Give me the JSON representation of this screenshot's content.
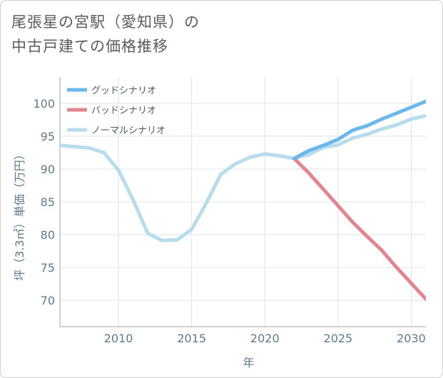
{
  "title_lines": [
    "尾張星の宮駅（愛知県）の",
    "中古戸建ての価格推移"
  ],
  "chart_data": {
    "type": "line",
    "title": "尾張星の宮駅（愛知県）の中古戸建ての価格推移",
    "xlabel": "年",
    "ylabel": "坪（3.3㎡）単価（万円）",
    "xlim": [
      2006,
      2031
    ],
    "ylim": [
      66,
      104
    ],
    "xticks": [
      2010,
      2015,
      2020,
      2025,
      2030
    ],
    "yticks": [
      70,
      75,
      80,
      85,
      90,
      95,
      100
    ],
    "grid": true,
    "legend_position": "top-left",
    "series": [
      {
        "name": "グッドシナリオ",
        "color": "#6cb8ea",
        "x": [
          2022,
          2023,
          2024,
          2025,
          2026,
          2027,
          2028,
          2029,
          2030,
          2031
        ],
        "y": [
          91.6,
          92.8,
          93.6,
          94.5,
          95.9,
          96.6,
          97.6,
          98.5,
          99.4,
          100.3
        ]
      },
      {
        "name": "バッドシナリオ",
        "color": "#e0868f",
        "x": [
          2022,
          2023,
          2024,
          2025,
          2026,
          2027,
          2028,
          2029,
          2030,
          2031
        ],
        "y": [
          91.6,
          89.4,
          86.9,
          84.4,
          81.9,
          79.7,
          77.6,
          75.0,
          72.6,
          70.2
        ]
      },
      {
        "name": "ノーマルシナリオ",
        "color": "#b7dcec",
        "x": [
          2006,
          2007,
          2008,
          2009,
          2010,
          2011,
          2012,
          2013,
          2014,
          2015,
          2016,
          2017,
          2018,
          2019,
          2020,
          2021,
          2022,
          2023,
          2024,
          2025,
          2026,
          2027,
          2028,
          2029,
          2030,
          2031
        ],
        "y": [
          93.6,
          93.4,
          93.2,
          92.5,
          89.8,
          85.3,
          80.2,
          79.1,
          79.2,
          80.8,
          84.8,
          89.2,
          90.8,
          91.8,
          92.3,
          92.0,
          91.6,
          92.2,
          93.3,
          93.7,
          94.7,
          95.3,
          96.1,
          96.7,
          97.6,
          98.1
        ]
      }
    ]
  }
}
